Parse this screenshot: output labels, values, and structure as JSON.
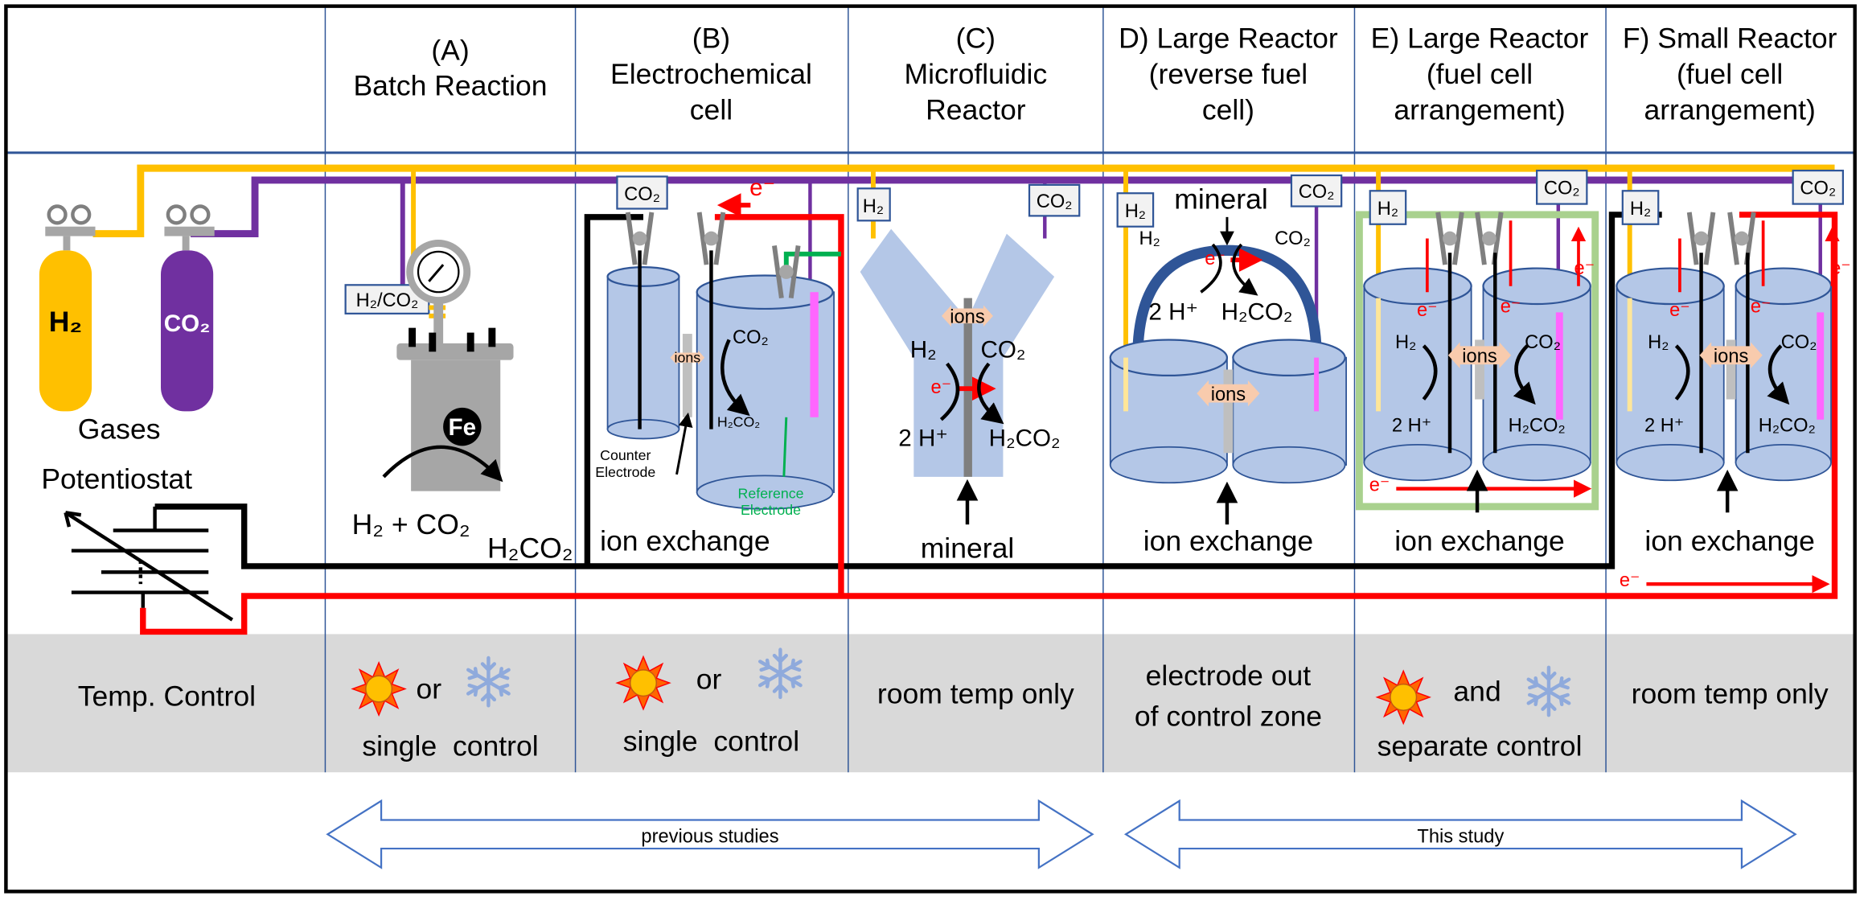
{
  "colors": {
    "h2": "#ffc000",
    "co2": "#7030a0",
    "electron": "#ff0000",
    "reference": "#00b050",
    "liquid": "#b4c7e7",
    "membrane_frame": "#a9d18e",
    "grid": "#2f5597",
    "temp_band": "#d9d9d9"
  },
  "columns": [
    {
      "line1": "(A)",
      "line2": "Batch Reaction"
    },
    {
      "line1": "(B)",
      "line2": "Electrochemical",
      "line3": "cell"
    },
    {
      "line1": "(C)",
      "line2": "Microfluidic",
      "line3": "Reactor"
    },
    {
      "line1": "D) Large Reactor",
      "line2": "(reverse fuel",
      "line3": "cell)"
    },
    {
      "line1": "E) Large Reactor",
      "line2": "(fuel cell",
      "line3": "arrangement)"
    },
    {
      "line1": "F) Small Reactor",
      "line2": "(fuel cell",
      "line3": "arrangement)"
    }
  ],
  "left": {
    "h2": "H₂",
    "co2": "CO₂",
    "gases": "Gases",
    "potentiostat": "Potentiostat",
    "temp_control": "Temp. Control"
  },
  "a": {
    "inlet": "H₂/CO₂",
    "fe": "Fe",
    "reactants": "H₂ + CO₂",
    "product": "H₂CO₂"
  },
  "b": {
    "co2_box": "CO₂",
    "e": "e⁻",
    "ions": "ions",
    "co2": "CO₂",
    "product": "H₂CO₂",
    "counter1": "Counter",
    "counter2": "Electrode",
    "ref1": "Reference",
    "ref2": "Electrode",
    "ion_exchange": "ion exchange"
  },
  "c": {
    "h2_box": "H₂",
    "co2_box": "CO₂",
    "ions": "ions",
    "h2": "H₂",
    "co2": "CO₂",
    "e": "e⁻",
    "protons": "2 H⁺",
    "product": "H₂CO₂",
    "mineral": "mineral"
  },
  "d": {
    "h2_box": "H₂",
    "co2_box": "CO₂",
    "mineral": "mineral",
    "h2": "H₂",
    "co2": "CO₂",
    "e": "e⁻",
    "protons": "2 H⁺",
    "product": "H₂CO₂",
    "ions": "ions",
    "ion_exchange": "ion exchange"
  },
  "e": {
    "h2_box": "H₂",
    "co2_box": "CO₂",
    "e": "e⁻",
    "h2": "H₂",
    "co2": "CO₂",
    "ions": "ions",
    "protons": "2 H⁺",
    "product": "H₂CO₂",
    "ion_exchange": "ion exchange"
  },
  "f": {
    "h2_box": "H₂",
    "co2_box": "CO₂",
    "e": "e⁻",
    "h2": "H₂",
    "co2": "CO₂",
    "ions": "ions",
    "protons": "2 H⁺",
    "product": "H₂CO₂",
    "ion_exchange": "ion exchange"
  },
  "temp": {
    "a": {
      "joiner": "or",
      "text": "single  control",
      "icons": [
        "sun-icon",
        "snowflake-icon"
      ]
    },
    "b": {
      "joiner": "or",
      "text": "single  control",
      "icons": [
        "sun-icon",
        "snowflake-icon"
      ]
    },
    "c": {
      "text": "room temp only"
    },
    "d": {
      "text1": "electrode out",
      "text2": "of control zone"
    },
    "e": {
      "joiner": "and",
      "text": "separate control",
      "icons": [
        "sun-icon",
        "snowflake-icon"
      ]
    },
    "f": {
      "text": "room temp only"
    }
  },
  "arrows": {
    "previous": "previous studies",
    "this": "This study"
  }
}
